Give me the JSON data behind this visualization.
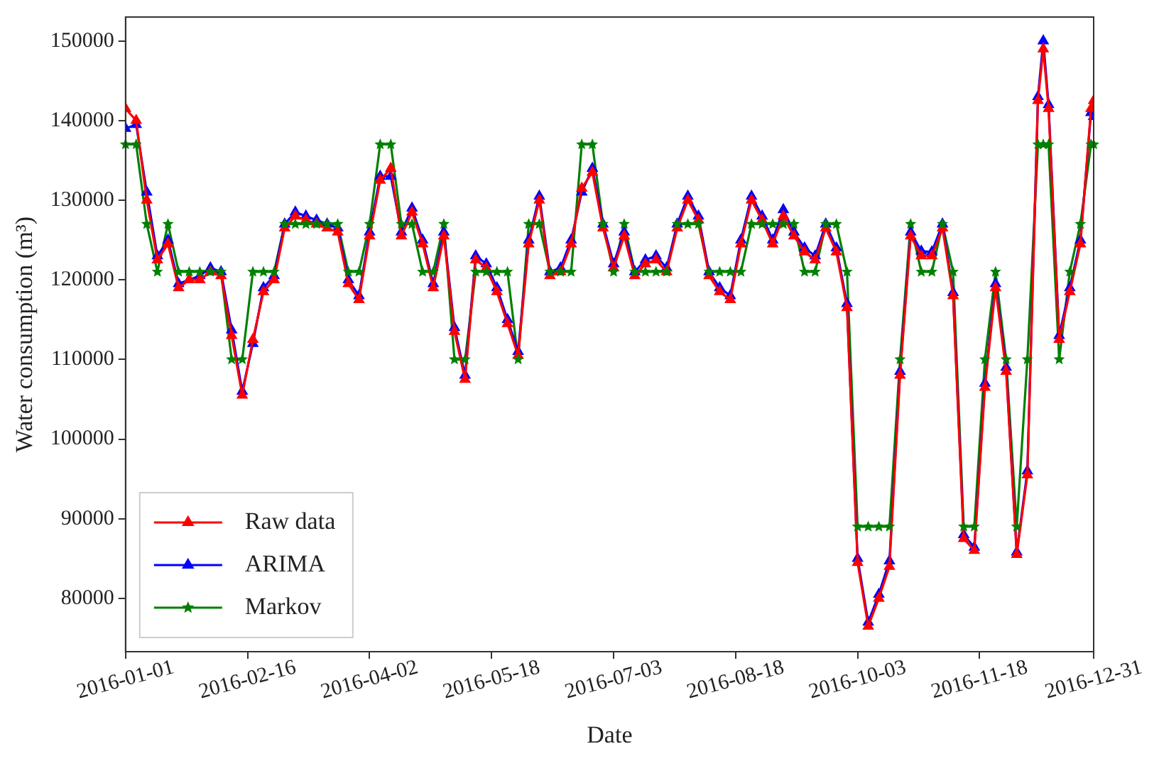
{
  "chart_data": {
    "type": "line",
    "xlabel": "Date",
    "ylabel": "Water consumption (m³)",
    "x": [
      "2016-01-01",
      "2016-01-05",
      "2016-01-09",
      "2016-01-13",
      "2016-01-17",
      "2016-01-21",
      "2016-01-25",
      "2016-01-29",
      "2016-02-02",
      "2016-02-06",
      "2016-02-10",
      "2016-02-14",
      "2016-02-18",
      "2016-02-22",
      "2016-02-26",
      "2016-03-01",
      "2016-03-05",
      "2016-03-09",
      "2016-03-13",
      "2016-03-17",
      "2016-03-21",
      "2016-03-25",
      "2016-03-29",
      "2016-04-02",
      "2016-04-06",
      "2016-04-10",
      "2016-04-14",
      "2016-04-18",
      "2016-04-22",
      "2016-04-26",
      "2016-04-30",
      "2016-05-04",
      "2016-05-08",
      "2016-05-12",
      "2016-05-16",
      "2016-05-20",
      "2016-05-24",
      "2016-05-28",
      "2016-06-01",
      "2016-06-05",
      "2016-06-09",
      "2016-06-13",
      "2016-06-17",
      "2016-06-21",
      "2016-06-25",
      "2016-06-29",
      "2016-07-03",
      "2016-07-07",
      "2016-07-11",
      "2016-07-15",
      "2016-07-19",
      "2016-07-23",
      "2016-07-27",
      "2016-07-31",
      "2016-08-04",
      "2016-08-08",
      "2016-08-12",
      "2016-08-16",
      "2016-08-20",
      "2016-08-24",
      "2016-08-28",
      "2016-09-01",
      "2016-09-05",
      "2016-09-09",
      "2016-09-13",
      "2016-09-17",
      "2016-09-21",
      "2016-09-25",
      "2016-09-29",
      "2016-10-03",
      "2016-10-07",
      "2016-10-11",
      "2016-10-15",
      "2016-10-19",
      "2016-10-23",
      "2016-10-27",
      "2016-10-31",
      "2016-11-04",
      "2016-11-08",
      "2016-11-12",
      "2016-11-16",
      "2016-11-20",
      "2016-11-24",
      "2016-11-28",
      "2016-12-02",
      "2016-12-06",
      "2016-12-10",
      "2016-12-12",
      "2016-12-14",
      "2016-12-18",
      "2016-12-22",
      "2016-12-26",
      "2016-12-30",
      "2016-12-31"
    ],
    "series": [
      {
        "name": "Raw data",
        "color": "#ff0000",
        "marker": "triangle",
        "values": [
          141500,
          140000,
          130000,
          122500,
          124500,
          119000,
          120000,
          120000,
          121000,
          120500,
          113000,
          105500,
          112500,
          118500,
          120000,
          126500,
          128000,
          127500,
          127000,
          126500,
          126000,
          119500,
          117500,
          125500,
          132500,
          134000,
          125500,
          128500,
          124500,
          119000,
          125500,
          113500,
          107500,
          122500,
          121500,
          118500,
          114500,
          110500,
          124500,
          130000,
          120500,
          121000,
          124500,
          131500,
          133500,
          126500,
          121500,
          125500,
          120500,
          122000,
          122500,
          121000,
          126500,
          130000,
          127500,
          120500,
          118500,
          117500,
          124500,
          130000,
          127500,
          124500,
          128000,
          125500,
          123500,
          122500,
          126500,
          123500,
          116500,
          84500,
          76500,
          80000,
          84000,
          108000,
          125500,
          123000,
          123000,
          126500,
          118000,
          87500,
          86000,
          106500,
          119000,
          108500,
          85500,
          95500,
          142500,
          149000,
          141500,
          112500,
          118500,
          124500,
          141500,
          142500
        ]
      },
      {
        "name": "ARIMA",
        "color": "#0000ff",
        "marker": "triangle",
        "values": [
          139000,
          139500,
          131000,
          123000,
          125000,
          119500,
          120000,
          120500,
          121500,
          121000,
          113700,
          106000,
          112000,
          119000,
          120500,
          127000,
          128500,
          128000,
          127500,
          127000,
          126500,
          120000,
          118000,
          126000,
          133000,
          133000,
          126000,
          129000,
          125000,
          119500,
          126000,
          114000,
          108000,
          123000,
          122000,
          119000,
          115000,
          111000,
          125000,
          130500,
          121000,
          121500,
          125000,
          131000,
          134000,
          127000,
          122000,
          126000,
          121000,
          122500,
          123000,
          121500,
          127000,
          130500,
          128000,
          121000,
          119000,
          118000,
          125000,
          130500,
          128000,
          125000,
          128800,
          126000,
          124000,
          123000,
          127000,
          124000,
          117000,
          85000,
          77000,
          80500,
          84700,
          108500,
          126000,
          123600,
          123500,
          127000,
          118400,
          88000,
          86400,
          107000,
          119500,
          109000,
          85800,
          96000,
          143000,
          150000,
          142000,
          113000,
          119000,
          125000,
          141000,
          140500
        ]
      },
      {
        "name": "Markov",
        "color": "#008000",
        "marker": "star",
        "values": [
          137000,
          137000,
          127000,
          121000,
          127000,
          121000,
          121000,
          121000,
          121000,
          121000,
          110000,
          110000,
          121000,
          121000,
          121000,
          127000,
          127000,
          127000,
          127000,
          127000,
          127000,
          121000,
          121000,
          127000,
          137000,
          137000,
          127000,
          127000,
          121000,
          121000,
          127000,
          110000,
          110000,
          121000,
          121000,
          121000,
          121000,
          110000,
          127000,
          127000,
          121000,
          121000,
          121000,
          137000,
          137000,
          127000,
          121000,
          127000,
          121000,
          121000,
          121000,
          121000,
          127000,
          127000,
          127000,
          121000,
          121000,
          121000,
          121000,
          127000,
          127000,
          127000,
          127000,
          127000,
          121000,
          121000,
          127000,
          127000,
          121000,
          89000,
          89000,
          89000,
          89000,
          110000,
          127000,
          121000,
          121000,
          127000,
          121000,
          89000,
          89000,
          110000,
          121000,
          110000,
          89000,
          110000,
          137000,
          137000,
          137000,
          110000,
          121000,
          127000,
          137000,
          137000
        ]
      }
    ],
    "xlim": [
      "2016-01-01",
      "2016-12-31"
    ],
    "xticks": [
      "2016-01-01",
      "2016-02-16",
      "2016-04-02",
      "2016-05-18",
      "2016-07-03",
      "2016-08-18",
      "2016-10-03",
      "2016-11-18",
      "2016-12-31"
    ],
    "ylim": [
      73300,
      153000
    ],
    "yticks": [
      80000,
      90000,
      100000,
      110000,
      120000,
      130000,
      140000,
      150000
    ],
    "grid": false,
    "legend": "bottom left"
  }
}
